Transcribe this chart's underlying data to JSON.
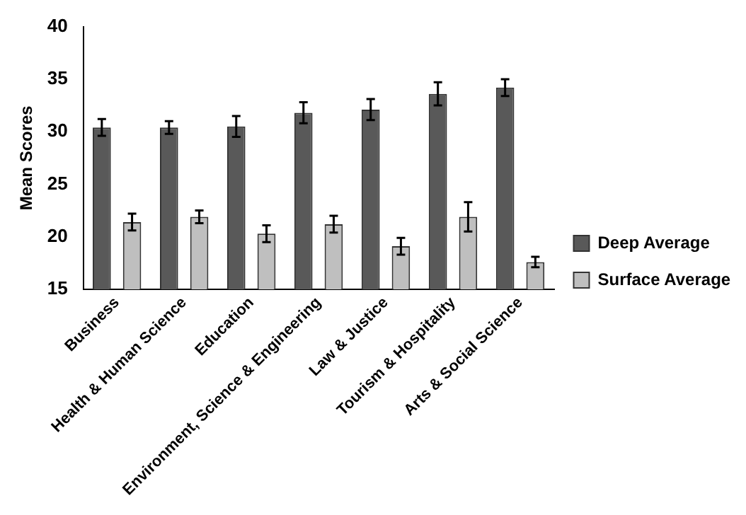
{
  "chart_data": {
    "type": "bar",
    "ylabel": "Mean Scores",
    "categories": [
      "Business",
      "Health & Human Science",
      "Education",
      "Environment, Science & Engineering",
      "Law & Justice",
      "Tourism & Hospitality",
      "Arts & Social Science"
    ],
    "series": [
      {
        "name": "Deep Average",
        "color": "#595959",
        "values": [
          30.4,
          30.4,
          30.5,
          31.8,
          32.1,
          33.6,
          34.2
        ],
        "errors": [
          0.8,
          0.6,
          1.0,
          1.0,
          1.0,
          1.1,
          0.8
        ]
      },
      {
        "name": "Surface Average",
        "color": "#bfbfbf",
        "values": [
          21.4,
          21.9,
          20.3,
          21.2,
          19.1,
          21.9,
          17.6
        ],
        "errors": [
          0.8,
          0.6,
          0.8,
          0.8,
          0.8,
          1.4,
          0.5
        ]
      }
    ],
    "ylim": [
      15,
      40
    ],
    "yticks": [
      15,
      20,
      25,
      30,
      35,
      40
    ],
    "grid": false,
    "legend": "right"
  }
}
